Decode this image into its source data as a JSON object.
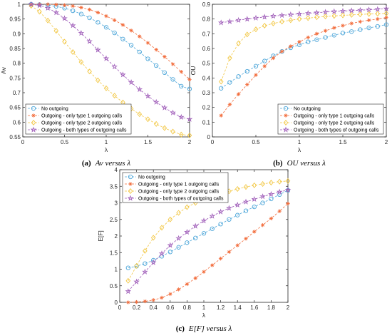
{
  "colors": {
    "no_outgoing": "#4da6d9",
    "type1": "#f26b3a",
    "type2": "#f2c744",
    "both": "#9e5bb8"
  },
  "chart_data": [
    {
      "id": "a",
      "type": "line",
      "caption_label": "(a)",
      "caption_text": "Av versus λ",
      "xlabel": "λ",
      "ylabel": "Av",
      "xlim": [
        0,
        2
      ],
      "ylim": [
        0.55,
        1.0
      ],
      "xticks": [
        "0",
        "0.5",
        "1",
        "1.5",
        "2"
      ],
      "yticks": [
        "0.55",
        "0.6",
        "0.65",
        "0.7",
        "0.75",
        "0.8",
        "0.85",
        "0.9",
        "0.95",
        "1"
      ],
      "legend_position": "bottom-left",
      "x": [
        0.1,
        0.2,
        0.3,
        0.4,
        0.5,
        0.6,
        0.7,
        0.8,
        0.9,
        1.0,
        1.1,
        1.2,
        1.3,
        1.4,
        1.5,
        1.6,
        1.7,
        1.8,
        1.9,
        2.0
      ],
      "series": [
        {
          "name": "No outgoing",
          "marker": "circle",
          "color_key": "no_outgoing",
          "values": [
            1.0,
            0.999,
            0.997,
            0.993,
            0.987,
            0.978,
            0.967,
            0.954,
            0.939,
            0.922,
            0.903,
            0.882,
            0.861,
            0.838,
            0.815,
            0.792,
            0.768,
            0.745,
            0.722,
            0.713
          ]
        },
        {
          "name": "Outgoing - only type 1 outgoing calls",
          "marker": "asterisk",
          "color_key": "type1",
          "values": [
            1.0,
            1.0,
            1.0,
            0.999,
            0.997,
            0.994,
            0.989,
            0.982,
            0.972,
            0.96,
            0.946,
            0.93,
            0.911,
            0.891,
            0.869,
            0.846,
            0.822,
            0.797,
            0.771,
            0.745
          ]
        },
        {
          "name": "Outgoing - only type 2 outgoing calls",
          "marker": "diamond",
          "color_key": "type2",
          "values": [
            0.995,
            0.975,
            0.945,
            0.91,
            0.873,
            0.838,
            0.804,
            0.772,
            0.742,
            0.715,
            0.69,
            0.667,
            0.646,
            0.627,
            0.61,
            0.594,
            0.58,
            0.568,
            0.558,
            0.555
          ]
        },
        {
          "name": "Outgoing - both types of outgoing calls",
          "marker": "star",
          "color_key": "both",
          "values": [
            1.0,
            0.996,
            0.987,
            0.972,
            0.952,
            0.928,
            0.902,
            0.874,
            0.845,
            0.816,
            0.788,
            0.761,
            0.735,
            0.711,
            0.689,
            0.668,
            0.649,
            0.632,
            0.617,
            0.61
          ]
        }
      ]
    },
    {
      "id": "b",
      "type": "line",
      "caption_label": "(b)",
      "caption_text": "OU versus λ",
      "xlabel": "λ",
      "ylabel": "OU",
      "xlim": [
        0,
        2
      ],
      "ylim": [
        0,
        0.9
      ],
      "xticks": [
        "0",
        "0.5",
        "1",
        "1.5",
        "2"
      ],
      "yticks": [
        "0",
        "0.1",
        "0.2",
        "0.3",
        "0.4",
        "0.5",
        "0.6",
        "0.7",
        "0.8",
        "0.9"
      ],
      "legend_position": "bottom-right",
      "x": [
        0.1,
        0.2,
        0.3,
        0.4,
        0.5,
        0.6,
        0.7,
        0.8,
        0.9,
        1.0,
        1.1,
        1.2,
        1.3,
        1.4,
        1.5,
        1.6,
        1.7,
        1.8,
        1.9,
        2.0
      ],
      "series": [
        {
          "name": "No outgoing",
          "marker": "circle",
          "color_key": "no_outgoing",
          "values": [
            0.33,
            0.37,
            0.41,
            0.445,
            0.48,
            0.515,
            0.55,
            0.58,
            0.605,
            0.625,
            0.645,
            0.66,
            0.675,
            0.69,
            0.705,
            0.715,
            0.728,
            0.74,
            0.75,
            0.762
          ]
        },
        {
          "name": "Outgoing - only type 1 outgoing calls",
          "marker": "asterisk",
          "color_key": "type1",
          "values": [
            0.145,
            0.22,
            0.29,
            0.355,
            0.42,
            0.48,
            0.535,
            0.58,
            0.615,
            0.645,
            0.675,
            0.7,
            0.72,
            0.74,
            0.755,
            0.77,
            0.782,
            0.792,
            0.8,
            0.81
          ]
        },
        {
          "name": "Outgoing - only type 2 outgoing calls",
          "marker": "diamond",
          "color_key": "type2",
          "values": [
            0.375,
            0.535,
            0.635,
            0.695,
            0.73,
            0.755,
            0.77,
            0.782,
            0.792,
            0.8,
            0.806,
            0.812,
            0.817,
            0.821,
            0.825,
            0.828,
            0.831,
            0.834,
            0.836,
            0.838
          ]
        },
        {
          "name": "Outgoing - both types of outgoing calls",
          "marker": "star",
          "color_key": "both",
          "values": [
            0.775,
            0.783,
            0.792,
            0.8,
            0.807,
            0.814,
            0.82,
            0.825,
            0.83,
            0.835,
            0.839,
            0.843,
            0.847,
            0.851,
            0.854,
            0.857,
            0.86,
            0.863,
            0.866,
            0.87
          ]
        }
      ]
    },
    {
      "id": "c",
      "type": "line",
      "caption_label": "(c)",
      "caption_text": "E[F] versus λ",
      "xlabel": "λ",
      "ylabel": "E[F]",
      "xlim": [
        0,
        2
      ],
      "ylim": [
        0,
        4
      ],
      "xticks": [
        "0",
        "0.2",
        "0.4",
        "0.6",
        "0.8",
        "1",
        "1.2",
        "1.4",
        "1.6",
        "1.8",
        "2"
      ],
      "yticks": [
        "0",
        "0.5",
        "1",
        "1.5",
        "2",
        "2.5",
        "3",
        "3.5",
        "4"
      ],
      "legend_position": "top-left",
      "x": [
        0.1,
        0.2,
        0.3,
        0.4,
        0.5,
        0.6,
        0.7,
        0.8,
        0.9,
        1.0,
        1.1,
        1.2,
        1.3,
        1.4,
        1.5,
        1.6,
        1.7,
        1.8,
        1.9,
        2.0
      ],
      "series": [
        {
          "name": "No outgoing",
          "marker": "circle",
          "color_key": "no_outgoing",
          "values": [
            1.04,
            1.09,
            1.17,
            1.27,
            1.39,
            1.52,
            1.66,
            1.8,
            1.94,
            2.08,
            2.22,
            2.36,
            2.5,
            2.63,
            2.76,
            2.88,
            3.0,
            3.12,
            3.25,
            3.38
          ]
        },
        {
          "name": "Outgoing - only type 1 outgoing calls",
          "marker": "asterisk",
          "color_key": "type1",
          "values": [
            0.0,
            0.01,
            0.03,
            0.07,
            0.14,
            0.25,
            0.39,
            0.55,
            0.73,
            0.92,
            1.12,
            1.32,
            1.52,
            1.72,
            1.92,
            2.13,
            2.33,
            2.53,
            2.75,
            2.98
          ]
        },
        {
          "name": "Outgoing - only type 2 outgoing calls",
          "marker": "diamond",
          "color_key": "type2",
          "values": [
            0.65,
            1.1,
            1.55,
            1.95,
            2.25,
            2.5,
            2.7,
            2.87,
            3.0,
            3.1,
            3.2,
            3.28,
            3.35,
            3.42,
            3.48,
            3.53,
            3.57,
            3.61,
            3.64,
            3.66
          ]
        },
        {
          "name": "Outgoing - both types of outgoing calls",
          "marker": "star",
          "color_key": "both",
          "values": [
            0.33,
            0.62,
            0.92,
            1.2,
            1.47,
            1.72,
            1.93,
            2.12,
            2.3,
            2.46,
            2.6,
            2.73,
            2.84,
            2.94,
            3.03,
            3.11,
            3.19,
            3.26,
            3.33,
            3.39
          ]
        }
      ]
    }
  ]
}
